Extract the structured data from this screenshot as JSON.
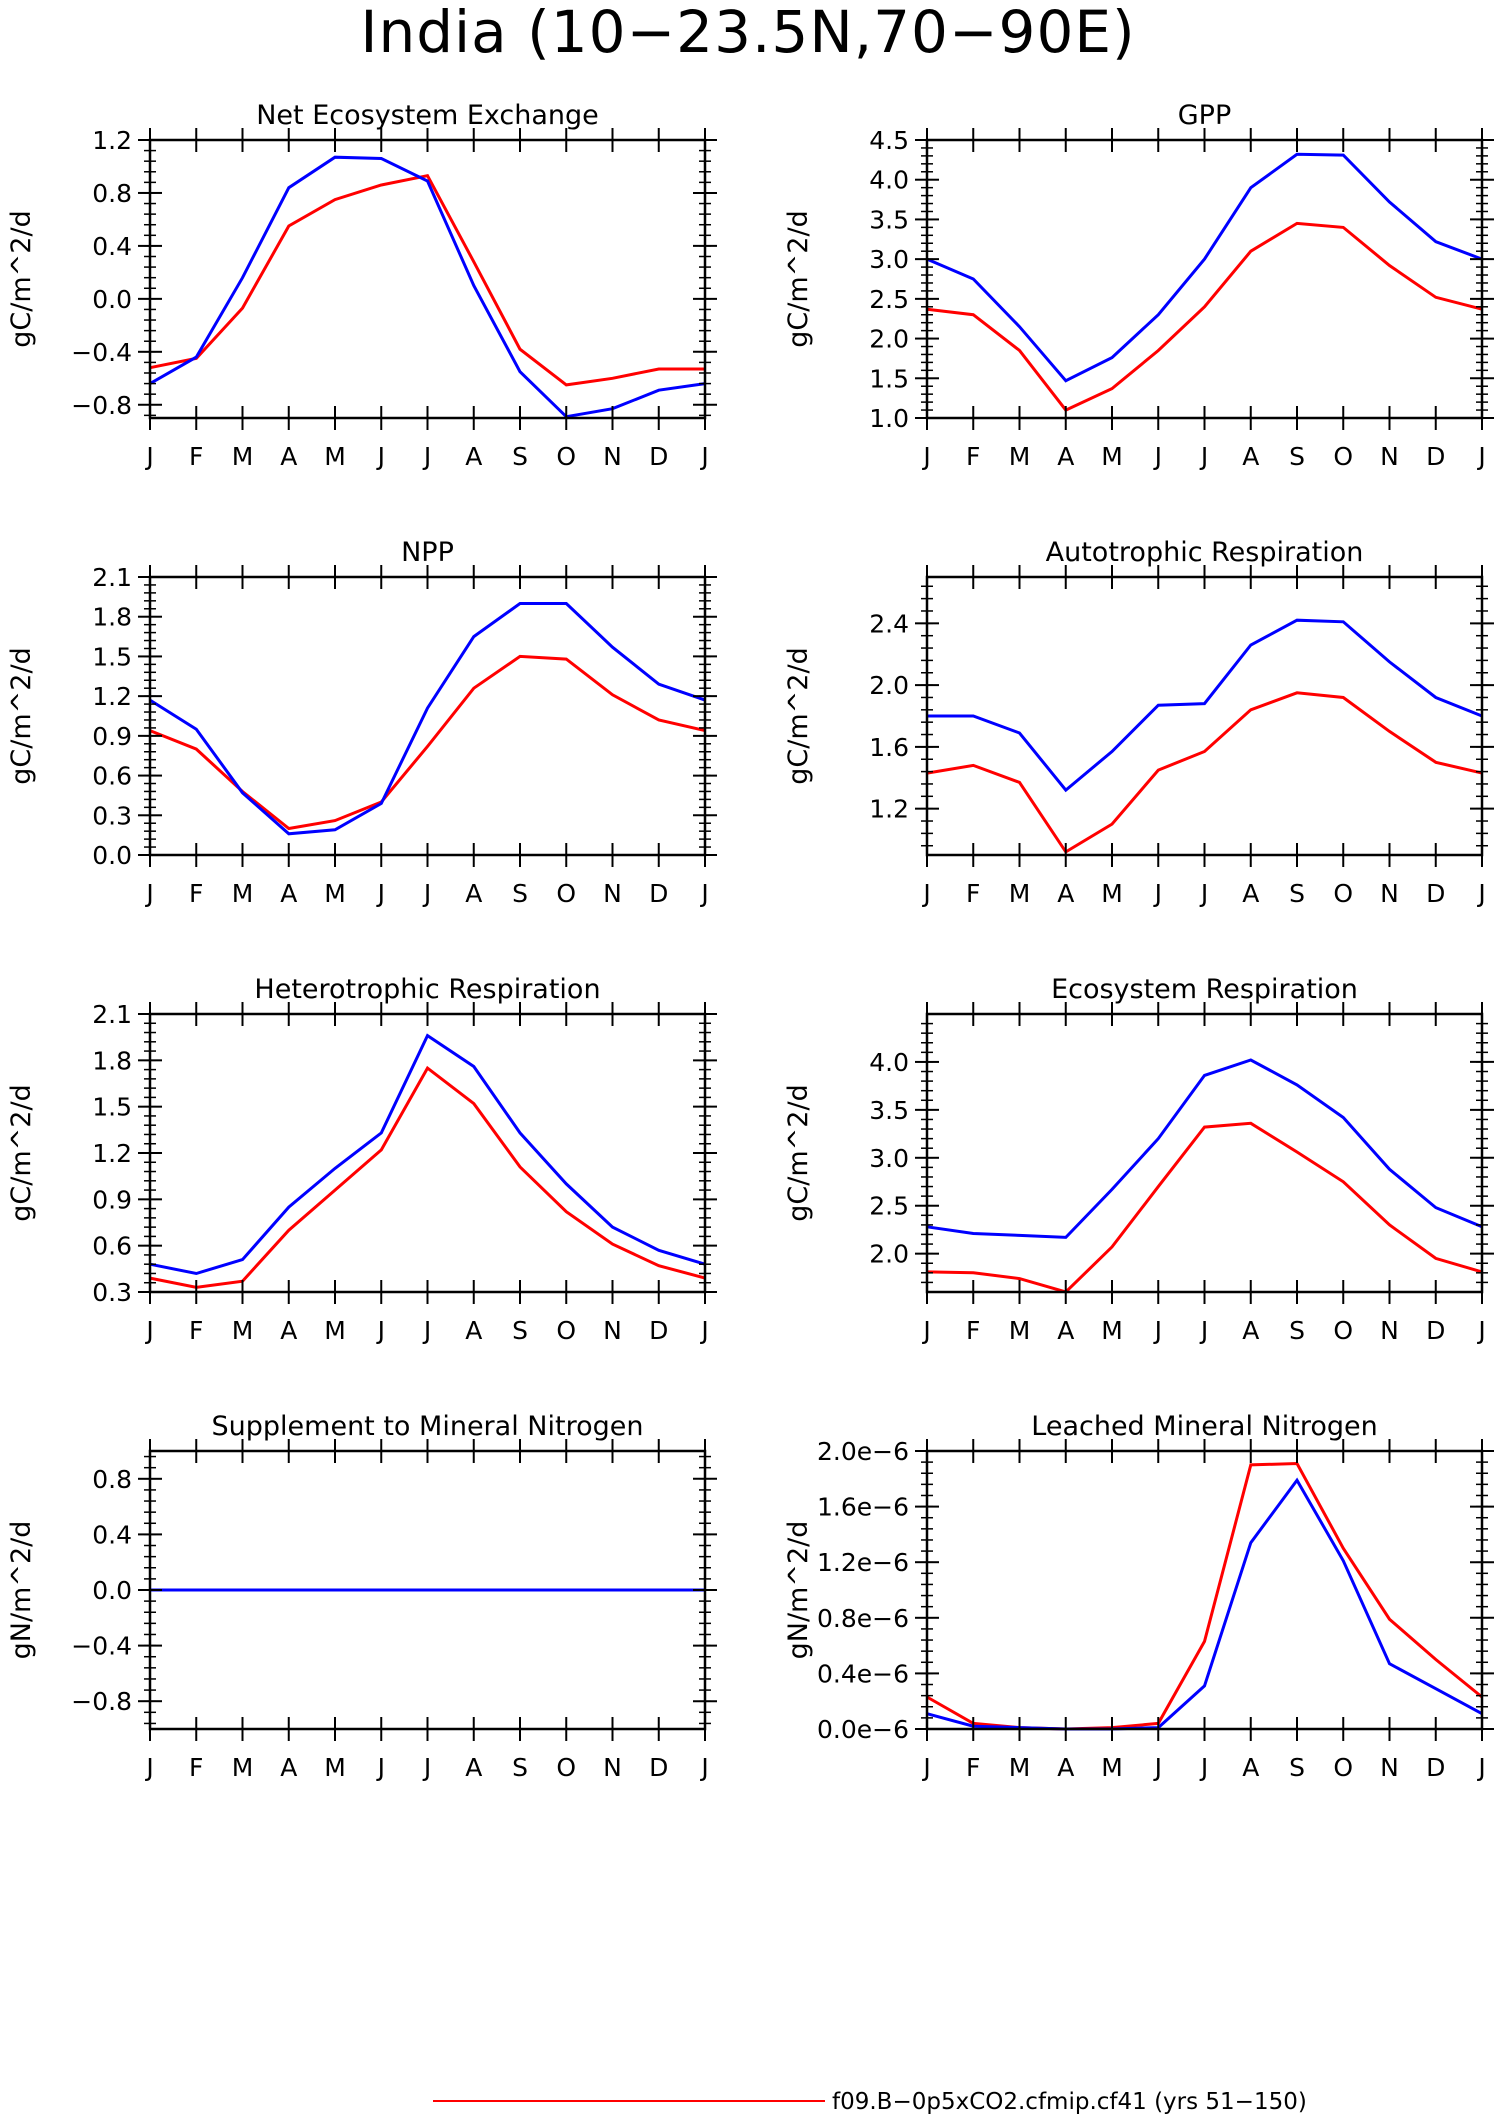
{
  "title": "India (10−23.5N,70−90E)",
  "colors": {
    "series1": "#ff0000",
    "series2": "#0000ff"
  },
  "months": [
    "J",
    "F",
    "M",
    "A",
    "M",
    "J",
    "J",
    "A",
    "S",
    "O",
    "N",
    "D",
    "J"
  ],
  "legend": [
    {
      "label": "f09.B−0p5xCO2.cfmip.cf41 (yrs 51−150)",
      "color": "#ff0000"
    }
  ],
  "chart_data": [
    {
      "type": "line",
      "title": "Net Ecosystem Exchange",
      "ylabel": "gC/m^2/d",
      "ylim": [
        -0.9,
        1.2
      ],
      "yticks": [
        -0.8,
        -0.4,
        0.0,
        0.4,
        0.8,
        1.2
      ],
      "ytick_labels": [
        "−0.8",
        "−0.4",
        "0.0",
        "0.4",
        "0.8",
        "1.2"
      ],
      "series": [
        {
          "color": "#ff0000",
          "values": [
            -0.52,
            -0.45,
            -0.07,
            0.55,
            0.75,
            0.86,
            0.93,
            0.28,
            -0.38,
            -0.65,
            -0.6,
            -0.53,
            -0.53
          ]
        },
        {
          "color": "#0000ff",
          "values": [
            -0.64,
            -0.44,
            0.16,
            0.84,
            1.07,
            1.06,
            0.89,
            0.1,
            -0.55,
            -0.89,
            -0.83,
            -0.69,
            -0.64
          ]
        }
      ]
    },
    {
      "type": "line",
      "title": "GPP",
      "ylabel": "gC/m^2/d",
      "ylim": [
        1.0,
        4.5
      ],
      "yticks": [
        1.0,
        1.5,
        2.0,
        2.5,
        3.0,
        3.5,
        4.0,
        4.5
      ],
      "ytick_labels": [
        "1.0",
        "1.5",
        "2.0",
        "2.5",
        "3.0",
        "3.5",
        "4.0",
        "4.5"
      ],
      "series": [
        {
          "color": "#ff0000",
          "values": [
            2.37,
            2.3,
            1.85,
            1.1,
            1.37,
            1.85,
            2.4,
            3.1,
            3.45,
            3.4,
            2.92,
            2.52,
            2.37
          ]
        },
        {
          "color": "#0000ff",
          "values": [
            3.0,
            2.75,
            2.15,
            1.47,
            1.76,
            2.3,
            3.0,
            3.9,
            4.32,
            4.31,
            3.72,
            3.22,
            3.0
          ]
        }
      ]
    },
    {
      "type": "line",
      "title": "NPP",
      "ylabel": "gC/m^2/d",
      "ylim": [
        0.0,
        2.1
      ],
      "yticks": [
        0.0,
        0.3,
        0.6,
        0.9,
        1.2,
        1.5,
        1.8,
        2.1
      ],
      "ytick_labels": [
        "0.0",
        "0.3",
        "0.6",
        "0.9",
        "1.2",
        "1.5",
        "1.8",
        "2.1"
      ],
      "series": [
        {
          "color": "#ff0000",
          "values": [
            0.94,
            0.8,
            0.48,
            0.2,
            0.26,
            0.4,
            0.82,
            1.26,
            1.5,
            1.48,
            1.21,
            1.02,
            0.94
          ]
        },
        {
          "color": "#0000ff",
          "values": [
            1.17,
            0.95,
            0.47,
            0.16,
            0.19,
            0.39,
            1.11,
            1.65,
            1.9,
            1.9,
            1.57,
            1.29,
            1.17
          ]
        }
      ]
    },
    {
      "type": "line",
      "title": "Autotrophic Respiration",
      "ylabel": "gC/m^2/d",
      "ylim": [
        0.9,
        2.7
      ],
      "yticks": [
        1.2,
        1.6,
        2.0,
        2.4
      ],
      "ytick_labels": [
        "1.2",
        "1.6",
        "2.0",
        "2.4"
      ],
      "series": [
        {
          "color": "#ff0000",
          "values": [
            1.43,
            1.48,
            1.37,
            0.92,
            1.1,
            1.45,
            1.57,
            1.84,
            1.95,
            1.92,
            1.7,
            1.5,
            1.43
          ]
        },
        {
          "color": "#0000ff",
          "values": [
            1.8,
            1.8,
            1.69,
            1.32,
            1.57,
            1.87,
            1.88,
            2.26,
            2.42,
            2.41,
            2.15,
            1.92,
            1.8
          ]
        }
      ]
    },
    {
      "type": "line",
      "title": "Heterotrophic Respiration",
      "ylabel": "gC/m^2/d",
      "ylim": [
        0.3,
        2.1
      ],
      "yticks": [
        0.3,
        0.6,
        0.9,
        1.2,
        1.5,
        1.8,
        2.1
      ],
      "ytick_labels": [
        "0.3",
        "0.6",
        "0.9",
        "1.2",
        "1.5",
        "1.8",
        "2.1"
      ],
      "series": [
        {
          "color": "#ff0000",
          "values": [
            0.39,
            0.33,
            0.37,
            0.7,
            0.96,
            1.22,
            1.75,
            1.52,
            1.11,
            0.82,
            0.61,
            0.47,
            0.39
          ]
        },
        {
          "color": "#0000ff",
          "values": [
            0.48,
            0.42,
            0.51,
            0.85,
            1.1,
            1.33,
            1.96,
            1.76,
            1.33,
            1.0,
            0.72,
            0.57,
            0.48
          ]
        }
      ]
    },
    {
      "type": "line",
      "title": "Ecosystem Respiration",
      "ylabel": "gC/m^2/d",
      "ylim": [
        1.6,
        4.5
      ],
      "yticks": [
        2.0,
        2.5,
        3.0,
        3.5,
        4.0
      ],
      "ytick_labels": [
        "2.0",
        "2.5",
        "3.0",
        "3.5",
        "4.0"
      ],
      "series": [
        {
          "color": "#ff0000",
          "values": [
            1.81,
            1.8,
            1.74,
            1.6,
            2.07,
            2.7,
            3.32,
            3.36,
            3.06,
            2.75,
            2.3,
            1.95,
            1.81
          ]
        },
        {
          "color": "#0000ff",
          "values": [
            2.28,
            2.21,
            2.19,
            2.17,
            2.67,
            3.2,
            3.86,
            4.02,
            3.76,
            3.42,
            2.88,
            2.48,
            2.28
          ]
        }
      ]
    },
    {
      "type": "line",
      "title": "Supplement to Mineral Nitrogen",
      "ylabel": "gN/m^2/d",
      "ylim": [
        -1.0,
        1.0
      ],
      "yticks": [
        -0.8,
        -0.4,
        0.0,
        0.4,
        0.8
      ],
      "ytick_labels": [
        "−0.8",
        "−0.4",
        "0.0",
        "0.4",
        "0.8"
      ],
      "series": [
        {
          "color": "#ff0000",
          "values": [
            0,
            0,
            0,
            0,
            0,
            0,
            0,
            0,
            0,
            0,
            0,
            0,
            0
          ]
        },
        {
          "color": "#0000ff",
          "values": [
            0,
            0,
            0,
            0,
            0,
            0,
            0,
            0,
            0,
            0,
            0,
            0,
            0
          ]
        }
      ]
    },
    {
      "type": "line",
      "title": "Leached Mineral Nitrogen",
      "ylabel": "gN/m^2/d",
      "ylim": [
        0.0,
        2e-06
      ],
      "yticks": [
        0.0,
        4e-07,
        8e-07,
        1.2e-06,
        1.6e-06,
        2e-06
      ],
      "ytick_labels": [
        "0.0e−6",
        "0.4e−6",
        "0.8e−6",
        "1.2e−6",
        "1.6e−6",
        "2.0e−6"
      ],
      "series": [
        {
          "color": "#ff0000",
          "values": [
            2.3e-07,
            4e-08,
            1e-08,
            0,
            1e-08,
            4e-08,
            6.3e-07,
            1.9e-06,
            1.91e-06,
            1.3e-06,
            7.9e-07,
            5e-07,
            2.3e-07
          ]
        },
        {
          "color": "#0000ff",
          "values": [
            1.1e-07,
            2e-08,
            1e-08,
            0,
            0,
            1e-08,
            3.1e-07,
            1.34e-06,
            1.79e-06,
            1.21e-06,
            4.7e-07,
            2.9e-07,
            1.1e-07
          ]
        }
      ]
    }
  ]
}
